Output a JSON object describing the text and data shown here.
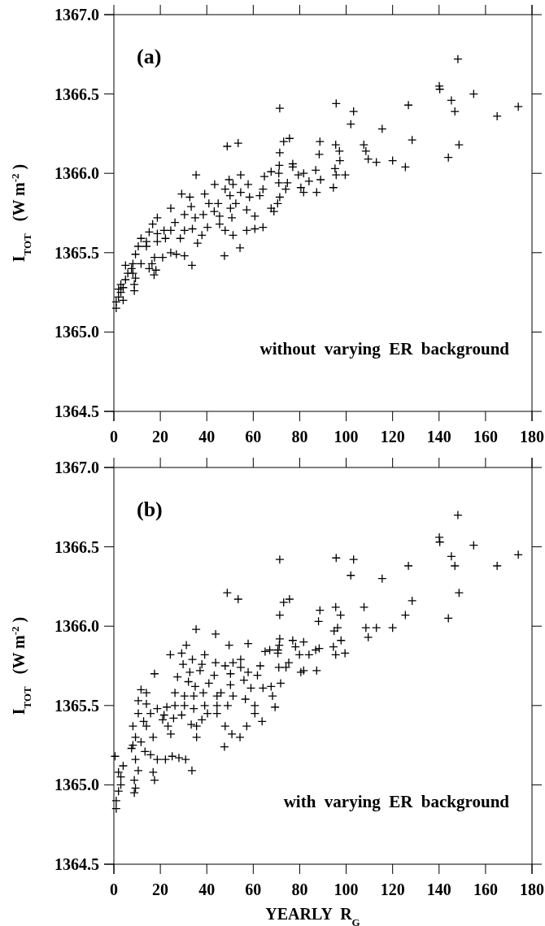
{
  "chart_data": [
    {
      "type": "scatter",
      "ylabel": "I$_{TOT}$  (W m$^{-2}$)",
      "annotations": [
        "(a)",
        "without  varying  ER  background"
      ],
      "marker": "cross",
      "xlim": [
        0,
        180
      ],
      "xticks": [
        0,
        20,
        40,
        60,
        80,
        100,
        120,
        140,
        160,
        180
      ],
      "ylim": [
        1364.5,
        1367.0
      ],
      "yticks": [
        1364.5,
        {
          "value": 1365.0,
          "label": "1365.0"
        },
        1365.5,
        {
          "value": 1366.0,
          "label": "1366.0"
        },
        1366.5,
        {
          "value": 1367.0,
          "label": "1367.0"
        }
      ],
      "series": [
        {
          "color": "#000000",
          "x": [
            71.4,
            95.7,
            103.2,
            102.0,
            115.5,
            126.8,
            128.4,
            140.1,
            140.3,
            145.3,
            146.8,
            154.9,
            148.6,
            144.0,
            165.0,
            174.1,
            148.1,
            73.1,
            75.6,
            71.4,
            71.2,
            71.0,
            71.0,
            74.7,
            74.0,
            71.4,
            70.5,
            77.0,
            77.0,
            79.4,
            81.7,
            80.5,
            81.7,
            84.0,
            87.3,
            86.9,
            88.7,
            88.4,
            89.0,
            95.5,
            97.1,
            97.3,
            95.2,
            95.7,
            99.6,
            94.5,
            107.6,
            108.5,
            109.5,
            113.0,
            120.0,
            125.5,
            48.8,
            53.5,
            35.4,
            43.4,
            49.6,
            51.3,
            54.6,
            57.8,
            29.2,
            32.7,
            39.1,
            47.9,
            50.0,
            54.6,
            58.4,
            64.2,
            62.8,
            64.8,
            67.7,
            24.5,
            18.7,
            16.7,
            33.3,
            40.9,
            44.9,
            43.2,
            50.2,
            52.5,
            57.2,
            60.7,
            67.7,
            68.9,
            30.4,
            35.0,
            38.5,
            45.5,
            50.8,
            45.5,
            40.3,
            47.9,
            51.3,
            57.2,
            60.7,
            64.2,
            54.3,
            47.6,
            33.6,
            36.0,
            37.9,
            30.4,
            33.8,
            28.6,
            24.5,
            21.6,
            26.3,
            18.7,
            15.2,
            14.0,
            18.7,
            22.2,
            24.5,
            30.4,
            26.9,
            21.0,
            17.5,
            14.0,
            10.5,
            11.7,
            9.3,
            8.2,
            11.7,
            16.4,
            18.1,
            15.2,
            17.3,
            8.2,
            9.3,
            8.8,
            8.8,
            7.6,
            1,
            1,
            2,
            3,
            3,
            4,
            5,
            6,
            5,
            2,
            4
          ],
          "values": [
            1366.41,
            1366.44,
            1366.39,
            1366.31,
            1366.28,
            1366.43,
            1366.21,
            1366.55,
            1366.53,
            1366.46,
            1366.39,
            1366.5,
            1366.18,
            1366.1,
            1366.36,
            1366.42,
            1366.72,
            1366.2,
            1366.22,
            1366.13,
            1366.05,
            1366.0,
            1365.94,
            1365.94,
            1365.9,
            1365.85,
            1365.81,
            1366.06,
            1366.04,
            1365.99,
            1366.0,
            1365.91,
            1365.88,
            1365.95,
            1365.88,
            1366.02,
            1366.2,
            1366.12,
            1365.96,
            1366.18,
            1366.14,
            1366.08,
            1366.03,
            1365.99,
            1365.99,
            1365.91,
            1366.18,
            1366.14,
            1366.09,
            1366.07,
            1366.08,
            1366.04,
            1366.17,
            1366.19,
            1365.99,
            1365.93,
            1365.96,
            1365.93,
            1365.99,
            1365.93,
            1365.87,
            1365.85,
            1365.87,
            1365.9,
            1365.86,
            1365.88,
            1365.85,
            1365.9,
            1365.86,
            1365.98,
            1366.01,
            1365.78,
            1365.72,
            1365.68,
            1365.79,
            1365.81,
            1365.81,
            1365.76,
            1365.78,
            1365.81,
            1365.77,
            1365.73,
            1365.78,
            1365.76,
            1365.74,
            1365.72,
            1365.74,
            1365.73,
            1365.72,
            1365.68,
            1365.66,
            1365.64,
            1365.61,
            1365.64,
            1365.65,
            1365.66,
            1365.53,
            1365.48,
            1365.42,
            1365.56,
            1365.61,
            1365.64,
            1365.65,
            1365.59,
            1365.64,
            1365.64,
            1365.69,
            1365.62,
            1365.63,
            1365.57,
            1365.57,
            1365.59,
            1365.5,
            1365.48,
            1365.49,
            1365.47,
            1365.47,
            1365.54,
            1365.54,
            1365.59,
            1365.49,
            1365.43,
            1365.43,
            1365.43,
            1365.39,
            1365.4,
            1365.36,
            1365.37,
            1365.34,
            1365.3,
            1365.26,
            1365.4,
            1365.15,
            1365.19,
            1365.22,
            1365.25,
            1365.3,
            1365.28,
            1365.33,
            1365.37,
            1365.42,
            1365.27,
            1365.2
          ]
        }
      ]
    },
    {
      "type": "scatter",
      "xlabel": "YEARLY  R$_{G}$",
      "ylabel": "I$_{TOT}$  (W m$^{-2}$)",
      "annotations": [
        "(b)",
        "with  varying  ER  background"
      ],
      "marker": "cross",
      "xlim": [
        0,
        180
      ],
      "xticks": [
        0,
        20,
        40,
        60,
        80,
        100,
        120,
        140,
        160,
        180
      ],
      "ylim": [
        1364.5,
        1367.0
      ],
      "yticks": [
        1364.5,
        {
          "value": 1365.0,
          "label": "1365.0"
        },
        1365.5,
        {
          "value": 1366.0,
          "label": "1366.0"
        },
        1366.5,
        {
          "value": 1367.0,
          "label": "1367.0"
        }
      ],
      "series": [
        {
          "color": "#000000",
          "x": [
            71.4,
            95.7,
            103.2,
            102.0,
            115.5,
            126.8,
            128.4,
            140.1,
            140.3,
            145.3,
            146.8,
            154.9,
            148.6,
            144.0,
            165.0,
            174.1,
            148.1,
            73.1,
            75.6,
            71.4,
            88.7,
            88.1,
            95.5,
            97.6,
            96.3,
            94.8,
            97.8,
            94.5,
            95.5,
            99.5,
            107.7,
            108.5,
            109.5,
            113.0,
            120.0,
            125.5,
            71.4,
            71.2,
            70.6,
            71.0,
            71.8,
            77.0,
            78.2,
            81.7,
            79.9,
            84.0,
            86.9,
            88.4,
            75.3,
            74.1,
            80.5,
            81.7,
            87.3,
            48.8,
            53.5,
            35.4,
            43.8,
            31.2,
            49.6,
            57.8,
            24.3,
            29.2,
            33.8,
            39.1,
            29.8,
            37.9,
            43.8,
            47.9,
            51.3,
            54.6,
            54.6,
            63.0,
            65.1,
            67.1,
            70.6,
            17.5,
            27.4,
            32.7,
            37.1,
            43.2,
            50.2,
            57.8,
            61.8,
            32.1,
            35.0,
            40.9,
            50.2,
            56.0,
            59.0,
            64.2,
            67.7,
            26.3,
            30.4,
            34.4,
            38.5,
            44.4,
            46.1,
            51.3,
            56.6,
            68.3,
            11.7,
            14.0,
            10.5,
            14.0,
            18.7,
            22.8,
            26.3,
            30.4,
            34.4,
            39.1,
            44.4,
            49.0,
            60.7,
            69.4,
            10.5,
            15.8,
            21.6,
            25.7,
            29.2,
            40.3,
            44.4,
            60.7,
            8.2,
            12.8,
            14.0,
            21.0,
            23.3,
            33.3,
            35.6,
            37.9,
            47.9,
            57.2,
            63.8,
            24.5,
            35.6,
            50.8,
            54.3,
            16.9,
            9.3,
            8.2,
            11.7,
            13.4,
            15.8,
            18.7,
            22.2,
            25.1,
            28.0,
            30.9,
            47.6,
            33.6,
            9.3,
            10.5,
            16.9,
            17.5,
            8.8,
            9.3,
            8.8,
            7.6,
            1,
            1,
            2,
            3,
            2,
            4,
            0.5,
            3
          ],
          "values": [
            1366.42,
            1366.43,
            1366.42,
            1366.32,
            1366.3,
            1366.38,
            1366.16,
            1366.56,
            1366.53,
            1366.44,
            1366.38,
            1366.51,
            1366.21,
            1366.05,
            1366.38,
            1366.45,
            1366.7,
            1366.15,
            1366.17,
            1366.07,
            1366.1,
            1366.03,
            1366.12,
            1366.07,
            1365.99,
            1365.97,
            1365.91,
            1365.87,
            1365.82,
            1365.83,
            1366.12,
            1365.99,
            1365.93,
            1365.99,
            1365.99,
            1366.07,
            1365.92,
            1365.88,
            1365.83,
            1365.74,
            1365.64,
            1365.91,
            1365.87,
            1365.9,
            1365.82,
            1365.82,
            1365.85,
            1365.86,
            1365.77,
            1365.74,
            1365.71,
            1365.72,
            1365.72,
            1366.21,
            1366.17,
            1365.98,
            1365.95,
            1365.88,
            1365.88,
            1365.89,
            1365.82,
            1365.83,
            1365.79,
            1365.82,
            1365.76,
            1365.76,
            1365.77,
            1365.75,
            1365.77,
            1365.79,
            1365.74,
            1365.75,
            1365.84,
            1365.85,
            1365.85,
            1365.7,
            1365.68,
            1365.71,
            1365.72,
            1365.69,
            1365.7,
            1365.71,
            1365.69,
            1365.65,
            1365.62,
            1365.64,
            1365.63,
            1365.66,
            1365.61,
            1365.61,
            1365.62,
            1365.58,
            1365.56,
            1365.56,
            1365.58,
            1365.56,
            1365.58,
            1365.56,
            1365.54,
            1365.56,
            1365.6,
            1365.58,
            1365.53,
            1365.51,
            1365.48,
            1365.49,
            1365.5,
            1365.5,
            1365.48,
            1365.5,
            1365.5,
            1365.5,
            1365.5,
            1365.49,
            1365.45,
            1365.45,
            1365.44,
            1365.42,
            1365.44,
            1365.45,
            1365.45,
            1365.45,
            1365.37,
            1365.4,
            1365.37,
            1365.41,
            1365.37,
            1365.38,
            1365.37,
            1365.41,
            1365.37,
            1365.37,
            1365.4,
            1365.32,
            1365.3,
            1365.32,
            1365.3,
            1365.3,
            1365.3,
            1365.25,
            1365.27,
            1365.21,
            1365.19,
            1365.16,
            1365.16,
            1365.18,
            1365.17,
            1365.16,
            1365.24,
            1365.09,
            1365.16,
            1365.09,
            1365.08,
            1365.03,
            1365.03,
            1364.98,
            1364.95,
            1365.23,
            1364.85,
            1364.9,
            1364.96,
            1365.0,
            1365.08,
            1365.12,
            1365.18,
            1365.05
          ]
        }
      ]
    }
  ]
}
